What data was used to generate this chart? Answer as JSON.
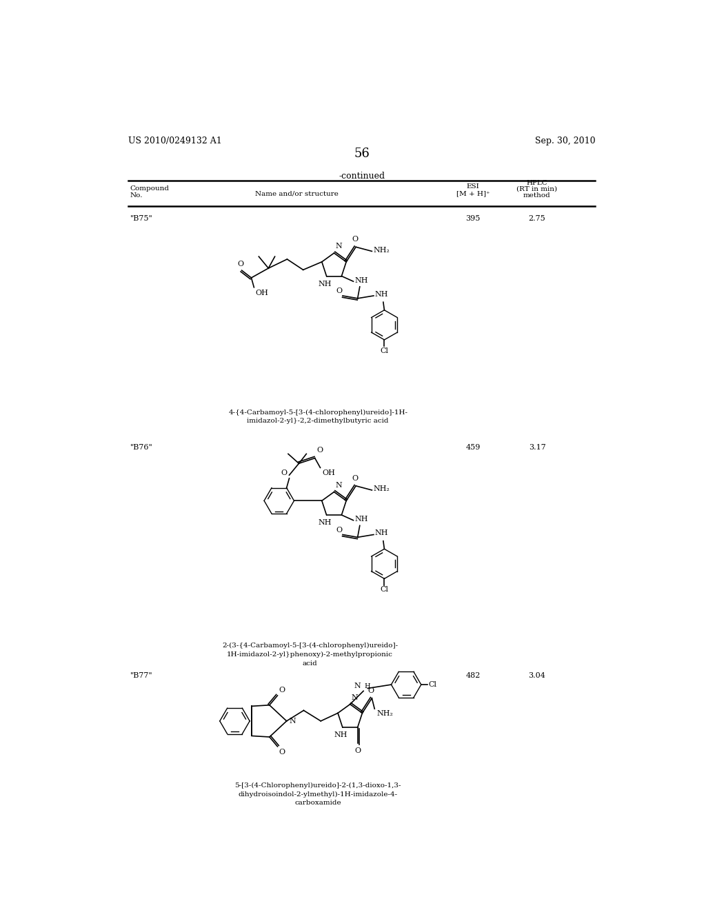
{
  "page_left": "US 2010/0249132 A1",
  "page_right": "Sep. 30, 2010",
  "page_number": "56",
  "continued_text": "-continued",
  "compounds": [
    {
      "id": "\"B75\"",
      "esi": "395",
      "hplc": "2.75",
      "name": "4-{4-Carbamoyl-5-[3-(4-chlorophenyl)ureido]-1H-\nimidazol-2-yl}-2,2-dimethylbutyric acid"
    },
    {
      "id": "\"B76\"",
      "esi": "459",
      "hplc": "3.17",
      "name": "2-(3-{4-Carbamoyl-5-[3-(4-chlorophenyl)ureido]-\n1H-imidazol-2-yl}phenoxy)-2-methylpropionic\nacid"
    },
    {
      "id": "\"B77\"",
      "esi": "482",
      "hplc": "3.04",
      "name": "5-[3-(4-Chlorophenyl)ureido]-2-(1,3-dioxo-1,3-\ndihydroisoindol-2-ylmethyl)-1H-imidazole-4-\ncarboxamide"
    }
  ],
  "bg_color": "#ffffff",
  "text_color": "#000000"
}
